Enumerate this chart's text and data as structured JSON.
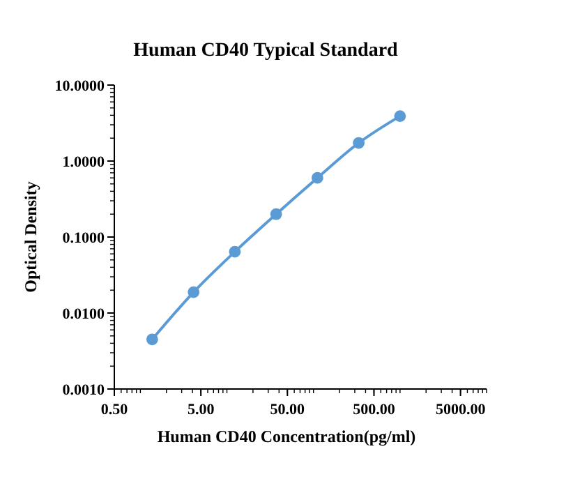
{
  "chart_data": {
    "type": "line",
    "title": "Human CD40 Typical Standard",
    "xlabel": "Human CD40 Concentration(pg/ml)",
    "ylabel": "Optical Density",
    "log": "xy",
    "marker": "circle",
    "line_style": "solid",
    "x": [
      1.37,
      4.12,
      12.35,
      37.04,
      111.1,
      333.3,
      1000
    ],
    "series": [
      {
        "color": "#5b9bd5",
        "values": [
          0.0045,
          0.0188,
          0.064,
          0.2,
          0.6,
          1.73,
          3.9
        ]
      }
    ],
    "xlim": [
      0.5,
      10000
    ],
    "xticks": [
      {
        "value": 0.5,
        "label": "0.50"
      },
      {
        "value": 5,
        "label": "5.00"
      },
      {
        "value": 50,
        "label": "50.00"
      },
      {
        "value": 500,
        "label": "500.00"
      },
      {
        "value": 5000,
        "label": "5000.00"
      }
    ],
    "ylim": [
      0.001,
      10
    ],
    "yticks": [
      {
        "value": 0.001,
        "label": "0.0010"
      },
      {
        "value": 0.01,
        "label": "0.0100"
      },
      {
        "value": 0.1,
        "label": "0.1000"
      },
      {
        "value": 1,
        "label": "1.0000"
      },
      {
        "value": 10,
        "label": "10.0000"
      }
    ]
  }
}
